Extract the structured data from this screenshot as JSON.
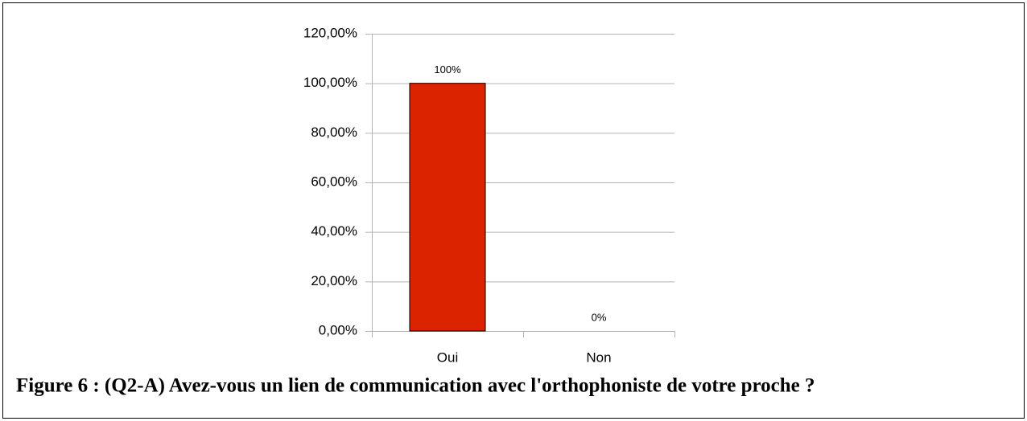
{
  "chart_data": {
    "type": "bar",
    "title": "Figure 6 : (Q2-A) Avez-vous un lien de communication avec l'orthophoniste de votre proche ?",
    "categories": [
      "Oui",
      "Non"
    ],
    "values": [
      100,
      0
    ],
    "value_labels": [
      "100%",
      "0%"
    ],
    "color": "#dc2300",
    "ylim": [
      0,
      120
    ],
    "yticks": [
      {
        "value": 0,
        "label": "0,00%"
      },
      {
        "value": 20,
        "label": "20,00%"
      },
      {
        "value": 40,
        "label": "40,00%"
      },
      {
        "value": 60,
        "label": "60,00%"
      },
      {
        "value": 80,
        "label": "80,00%"
      },
      {
        "value": 100,
        "label": "100,00%"
      },
      {
        "value": 120,
        "label": "120,00%"
      }
    ],
    "grid": true
  }
}
